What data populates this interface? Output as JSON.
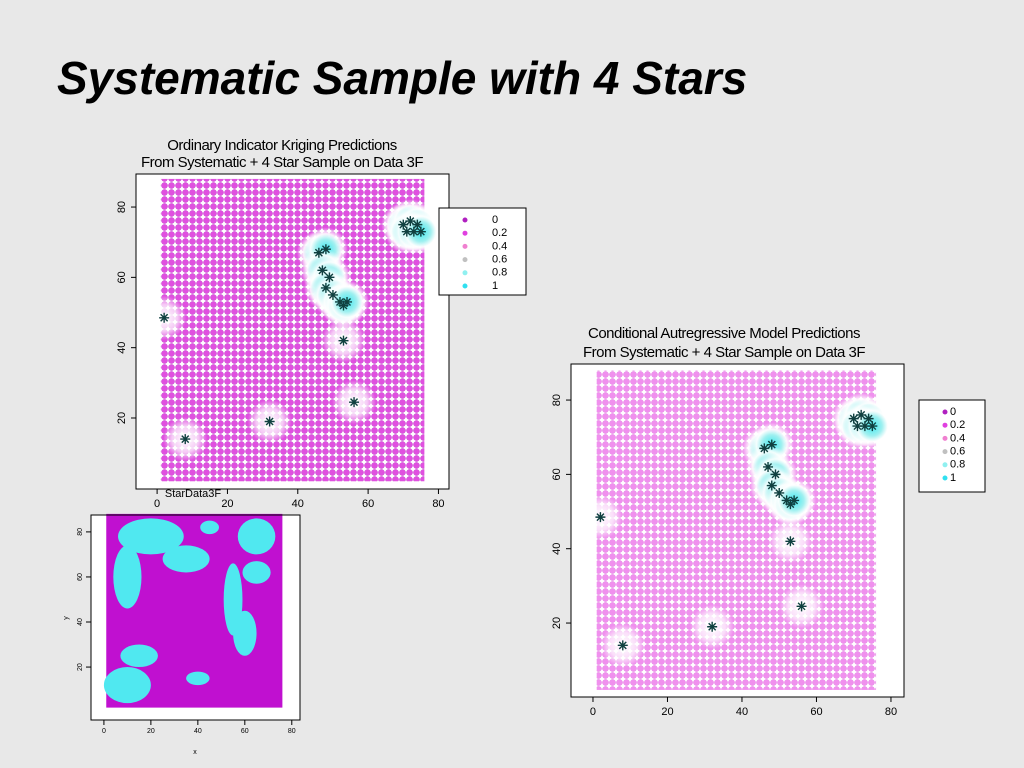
{
  "title": "Systematic Sample with 4 Stars",
  "chart_data": [
    {
      "type": "scatter",
      "title": "Ordinary Indicator Kriging Predictions",
      "subtitle": "From Systematic + 4 Star Sample on Data 3F",
      "x_label": "StarData3F",
      "xlim": [
        -6,
        83
      ],
      "ylim": [
        -0.2,
        89.4
      ],
      "xticks": [
        0,
        20,
        40,
        60,
        80
      ],
      "yticks": [
        20,
        40,
        60,
        80
      ],
      "legend_levels": [
        0,
        0.2,
        0.4,
        0.6,
        0.8,
        1
      ],
      "legend_colors": [
        "#b020c0",
        "#e040e0",
        "#f080d0",
        "#c0c0c0",
        "#90f0f0",
        "#30e0f0"
      ],
      "series": [
        {
          "name": "stars",
          "color": "#104040",
          "x": [
            2,
            8,
            32,
            53,
            56,
            46,
            48,
            47,
            49,
            48,
            50,
            52,
            53,
            54,
            70,
            72,
            74,
            71,
            73,
            75
          ],
          "y": [
            48.5,
            14,
            19,
            42,
            24.5,
            67,
            68,
            62,
            60,
            57,
            55,
            53,
            52,
            53,
            75,
            76,
            75,
            73,
            73,
            73
          ]
        }
      ]
    },
    {
      "type": "map",
      "x_label": "x",
      "y_label": "y",
      "xlim": [
        -5.5,
        83.5
      ],
      "ylim": [
        -3.5,
        87.5
      ],
      "xticks": [
        0,
        20,
        40,
        60,
        80
      ],
      "yticks": [
        20,
        40,
        60,
        80
      ]
    },
    {
      "type": "scatter",
      "title": "Conditional Autregressive Model Predictions",
      "subtitle": "From Systematic + 4 Star Sample on Data 3F",
      "xlim": [
        -5.9,
        83.5
      ],
      "ylim": [
        0.1,
        89.7
      ],
      "xticks": [
        0,
        20,
        40,
        60,
        80
      ],
      "yticks": [
        20,
        40,
        60,
        80
      ],
      "legend_levels": [
        0,
        0.2,
        0.4,
        0.6,
        0.8,
        1
      ],
      "legend_colors": [
        "#b020c0",
        "#e040e0",
        "#f080d0",
        "#c0c0c0",
        "#90f0f0",
        "#30e0f0"
      ],
      "series": [
        {
          "name": "stars",
          "color": "#104040",
          "x": [
            2,
            8,
            32,
            53,
            56,
            46,
            48,
            47,
            49,
            48,
            50,
            52,
            53,
            54,
            70,
            72,
            74,
            71,
            73,
            75
          ],
          "y": [
            48.5,
            14,
            19,
            42,
            24.5,
            67,
            68,
            62,
            60,
            57,
            55,
            53,
            52,
            53,
            75,
            76,
            75,
            73,
            73,
            73
          ]
        }
      ]
    }
  ]
}
